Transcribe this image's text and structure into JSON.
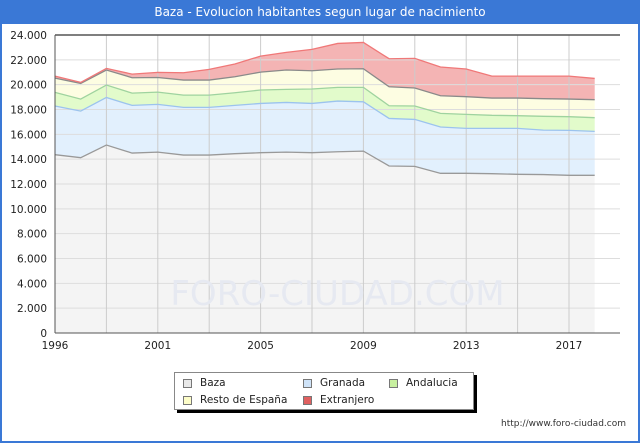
{
  "title": "Baza - Evolucion habitantes segun lugar de nacimiento",
  "footer": "http://www.foro-ciudad.com",
  "watermark": "FORO-CIUDAD.COM",
  "chart_data": {
    "type": "area",
    "stacked": true,
    "title": "Baza - Evolucion habitantes segun lugar de nacimiento",
    "x": [
      1996,
      1998,
      1999,
      2000,
      2001,
      2002,
      2003,
      2004,
      2005,
      2006,
      2007,
      2008,
      2009,
      2010,
      2011,
      2012,
      2013,
      2014,
      2015,
      2016,
      2017,
      2018
    ],
    "x_tick_labels": [
      "1996",
      "2001",
      "2005",
      "2009",
      "2013",
      "2017"
    ],
    "x_ticks": [
      1996,
      2001,
      2005,
      2009,
      2013,
      2017
    ],
    "y_tick_labels": [
      "0",
      "2.000",
      "4.000",
      "6.000",
      "8.000",
      "10.000",
      "12.000",
      "14.000",
      "16.000",
      "18.000",
      "20.000",
      "22.000",
      "24.000"
    ],
    "ylim": [
      0,
      24000
    ],
    "grid": true,
    "legend_placement": "bottom",
    "series": [
      {
        "name": "Baza",
        "color": "#f4f4f4",
        "line": "#999999",
        "values": [
          14360,
          14120,
          15140,
          14490,
          14570,
          14330,
          14330,
          14440,
          14520,
          14570,
          14520,
          14600,
          14650,
          13450,
          13420,
          12860,
          12860,
          12830,
          12780,
          12760,
          12700,
          12700
        ]
      },
      {
        "name": "Granada",
        "color": "#e2f0fd",
        "line": "#9cc3ee",
        "values": [
          3920,
          3750,
          3830,
          3840,
          3840,
          3840,
          3840,
          3890,
          3970,
          4000,
          3970,
          4080,
          3970,
          3830,
          3780,
          3730,
          3620,
          3650,
          3700,
          3580,
          3620,
          3540
        ]
      },
      {
        "name": "Andalucia",
        "color": "#e2fbcb",
        "line": "#9fd39f",
        "values": [
          1100,
          970,
          1000,
          990,
          990,
          990,
          990,
          1020,
          1080,
          1050,
          1160,
          1100,
          1160,
          1020,
          1080,
          1100,
          1130,
          1050,
          1020,
          1110,
          1100,
          1100
        ]
      },
      {
        "name": "Resto de España",
        "color": "#fdfde2",
        "line": "#8a8a8a",
        "values": [
          1150,
          1260,
          1210,
          1240,
          1180,
          1210,
          1210,
          1290,
          1440,
          1560,
          1470,
          1480,
          1500,
          1530,
          1450,
          1420,
          1420,
          1390,
          1420,
          1420,
          1420,
          1450
        ]
      },
      {
        "name": "Extranjero",
        "color": "#f4b4b4",
        "line": "#f07878",
        "values": [
          160,
          80,
          130,
          290,
          410,
          590,
          860,
          1020,
          1290,
          1420,
          1720,
          2060,
          2120,
          2260,
          2390,
          2310,
          2230,
          1770,
          1770,
          1820,
          1850,
          1710
        ]
      }
    ]
  },
  "legend": {
    "items": [
      {
        "label": "Baza",
        "color": "#e8e8e8"
      },
      {
        "label": "Granada",
        "color": "#cfe3f8"
      },
      {
        "label": "Andalucia",
        "color": "#c8f0a0"
      },
      {
        "label": "Resto de España",
        "color": "#fdfdc8"
      },
      {
        "label": "Extranjero",
        "color": "#e06060"
      }
    ]
  }
}
